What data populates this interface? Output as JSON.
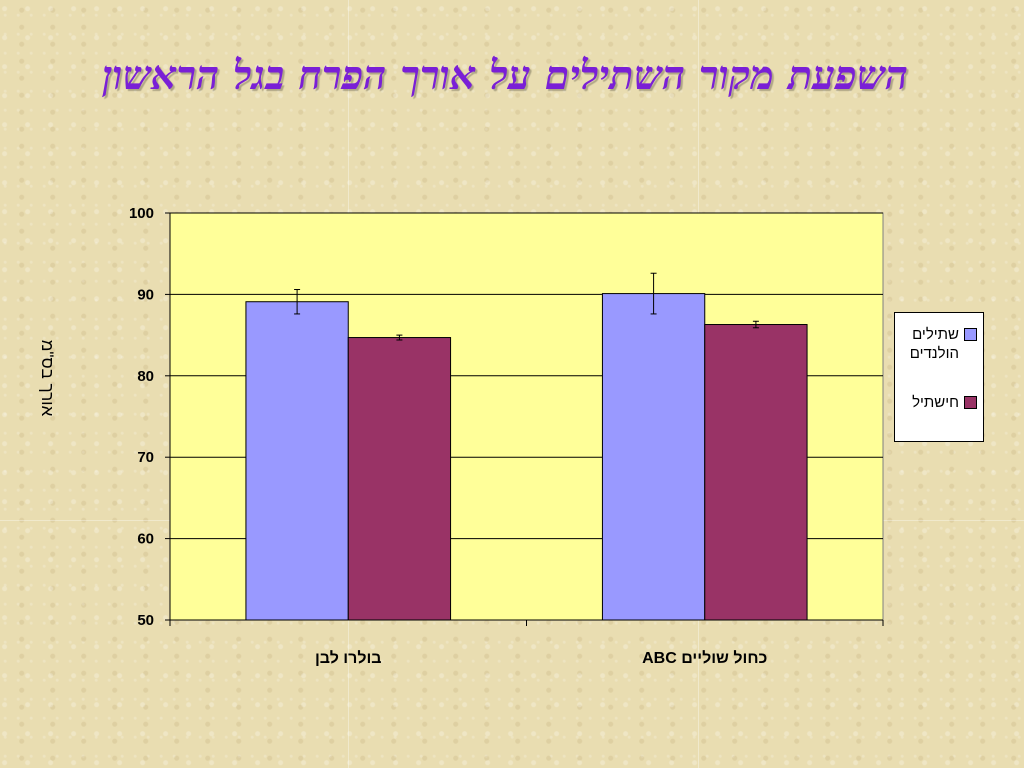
{
  "title": "השפעת מקור השתילים על אורך הפרח בגל הראשון",
  "chart_data": {
    "type": "bar",
    "categories": [
      "בולרו לבן",
      "כחול שוליים ABC"
    ],
    "series": [
      {
        "name": "שתילים הולנדים",
        "color": "#9999ff",
        "values": [
          89.1,
          90.1
        ],
        "errors": [
          1.5,
          2.5
        ]
      },
      {
        "name": "חישתיל",
        "color": "#993366",
        "values": [
          84.7,
          86.3
        ],
        "errors": [
          0.3,
          0.4
        ]
      }
    ],
    "ylabel": "אורך בס\"מ",
    "ylim": [
      50,
      100
    ],
    "yticks": [
      "50",
      "60",
      "70",
      "80",
      "90",
      "100"
    ],
    "plot_bg": "#ffff99",
    "grid": true,
    "legend_position": "right"
  }
}
